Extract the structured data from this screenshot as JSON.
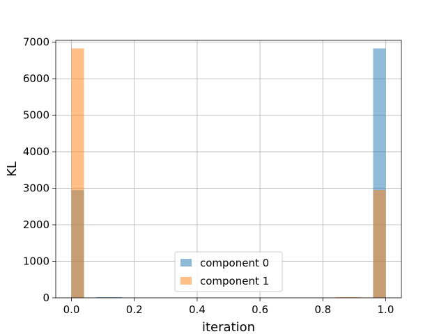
{
  "chart_data": {
    "type": "bar",
    "subtype": "overlaid-histogram",
    "title": "",
    "xlabel": "iteration",
    "ylabel": "KL",
    "xlim": [
      -0.05,
      1.05
    ],
    "ylim": [
      0,
      7050
    ],
    "x_ticks": [
      "0.0",
      "0.2",
      "0.4",
      "0.6",
      "0.8",
      "1.0"
    ],
    "y_ticks": [
      "0",
      "1000",
      "2000",
      "3000",
      "4000",
      "5000",
      "6000",
      "7000"
    ],
    "grid": true,
    "legend_position": "lower center",
    "bin_edges": [
      0.0,
      0.04,
      0.08,
      0.12,
      0.16,
      0.84,
      0.88,
      0.92,
      0.96,
      1.0
    ],
    "series": [
      {
        "name": "component 0",
        "color": "#1f77b4",
        "opacity": 0.5,
        "bins": [
          {
            "x0": 0.0,
            "x1": 0.04,
            "count": 2950
          },
          {
            "x0": 0.04,
            "x1": 0.08,
            "count": 10
          },
          {
            "x0": 0.08,
            "x1": 0.12,
            "count": 20
          },
          {
            "x0": 0.12,
            "x1": 0.16,
            "count": 20
          },
          {
            "x0": 0.96,
            "x1": 1.0,
            "count": 6830
          }
        ]
      },
      {
        "name": "component 1",
        "color": "#ff7f0e",
        "opacity": 0.5,
        "bins": [
          {
            "x0": 0.0,
            "x1": 0.04,
            "count": 6830
          },
          {
            "x0": 0.84,
            "x1": 0.88,
            "count": 20
          },
          {
            "x0": 0.88,
            "x1": 0.92,
            "count": 20
          },
          {
            "x0": 0.92,
            "x1": 0.96,
            "count": 10
          },
          {
            "x0": 0.96,
            "x1": 1.0,
            "count": 2950
          }
        ]
      }
    ]
  }
}
